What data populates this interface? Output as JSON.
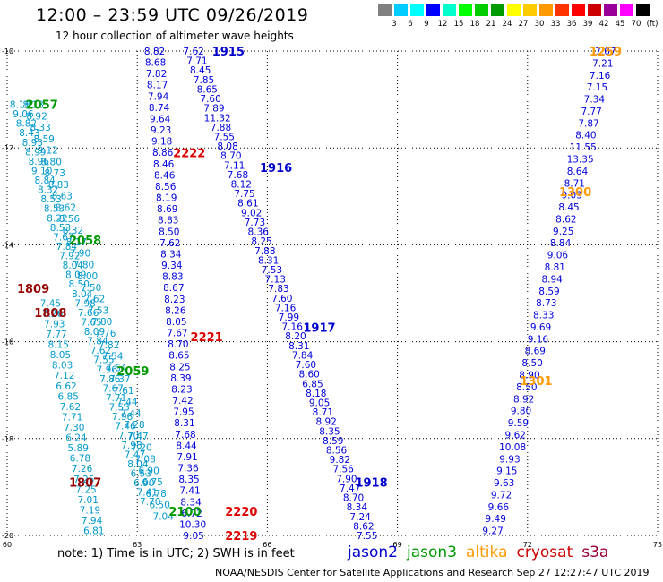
{
  "title": "12:00 – 23:59 UTC 09/26/2019",
  "subtitle": "12 hour collection of altimeter wave heights",
  "note": "note: 1) Time is in UTC; 2) SWH is in feet",
  "credit": "NOAA/NESDIS Center for Satellite Applications and Research   Sep 27 12:27:47 UTC 2019",
  "satellites": [
    {
      "name": "jason2",
      "color": "#0000cc"
    },
    {
      "name": "jason3",
      "color": "#009900"
    },
    {
      "name": "altika",
      "color": "#ff9900"
    },
    {
      "name": "cryosat",
      "color": "#cc0000"
    },
    {
      "name": "s3a",
      "color": "#990033"
    }
  ],
  "legend": {
    "labels": [
      "3",
      "6",
      "9",
      "12",
      "15",
      "18",
      "21",
      "24",
      "27",
      "30",
      "33",
      "36",
      "39",
      "42",
      "45",
      "70"
    ],
    "unit": "(ft)",
    "colors": [
      "#808080",
      "#00ccff",
      "#00ffff",
      "#0000ff",
      "#00ffcc",
      "#00ff00",
      "#00cc00",
      "#009900",
      "#ffff00",
      "#ffcc00",
      "#ff9900",
      "#ff3300",
      "#ff0000",
      "#cc0000",
      "#990099",
      "#ff00ff",
      "#000000"
    ]
  },
  "map": {
    "lon_range": [
      60,
      75
    ],
    "lat_range": [
      -20,
      -10
    ],
    "lon_ticks": [
      "60",
      "63",
      "66",
      "69",
      "72",
      "75"
    ],
    "lat_ticks": [
      "-10",
      "-12",
      "-14",
      "-16",
      "-18",
      "-20"
    ],
    "grid": true
  },
  "track_labels": [
    {
      "text": "1915",
      "lon": 65.1,
      "lat": -10.0,
      "color": "#0000cc"
    },
    {
      "text": "1916",
      "lon": 66.2,
      "lat": -12.4,
      "color": "#0000cc"
    },
    {
      "text": "1917",
      "lon": 67.2,
      "lat": -15.7,
      "color": "#0000cc"
    },
    {
      "text": "1918",
      "lon": 68.4,
      "lat": -18.9,
      "color": "#0000cc"
    },
    {
      "text": "2222",
      "lon": 64.2,
      "lat": -12.1,
      "color": "#dd0000"
    },
    {
      "text": "2221",
      "lon": 64.6,
      "lat": -15.9,
      "color": "#dd0000"
    },
    {
      "text": "2220",
      "lon": 65.4,
      "lat": -19.5,
      "color": "#dd0000"
    },
    {
      "text": "2219",
      "lon": 65.4,
      "lat": -20.0,
      "color": "#dd0000"
    },
    {
      "text": "2057",
      "lon": 60.8,
      "lat": -11.1,
      "color": "#009900"
    },
    {
      "text": "2058",
      "lon": 61.8,
      "lat": -13.9,
      "color": "#009900"
    },
    {
      "text": "2059",
      "lon": 62.9,
      "lat": -16.6,
      "color": "#009900"
    },
    {
      "text": "2100",
      "lon": 64.1,
      "lat": -19.5,
      "color": "#009900"
    },
    {
      "text": "1809",
      "lon": 60.6,
      "lat": -14.9,
      "color": "#990000"
    },
    {
      "text": "1808",
      "lon": 61.0,
      "lat": -15.4,
      "color": "#990000"
    },
    {
      "text": "1807",
      "lon": 61.8,
      "lat": -18.9,
      "color": "#990000"
    },
    {
      "text": "1259",
      "lon": 73.8,
      "lat": -10.0,
      "color": "#ff9900"
    },
    {
      "text": "1300",
      "lon": 73.1,
      "lat": -12.9,
      "color": "#ff9900"
    },
    {
      "text": "1301",
      "lon": 72.2,
      "lat": -16.8,
      "color": "#ff9900"
    }
  ],
  "tracks": [
    {
      "name": "track-1915-1918",
      "color": "#0000dd",
      "lon_start": 64.3,
      "lat_start": -10.0,
      "lon_end": 68.3,
      "lat_end": -20.0,
      "values": [
        "7.62",
        "7.71",
        "8.45",
        "7.85",
        "8.65",
        "7.60",
        "7.89",
        "11.32",
        "7.88",
        "7.55",
        "8.08",
        "8.70",
        "7.11",
        "7.68",
        "8.12",
        "7.75",
        "8.61",
        "9.02",
        "7.73",
        "8.36",
        "8.25",
        "7.88",
        "8.31",
        "7.53",
        "7.13",
        "7.83",
        "7.60",
        "7.16",
        "7.99",
        "7.16",
        "8.20",
        "8.31",
        "7.84",
        "7.60",
        "8.60",
        "6.85",
        "8.18",
        "9.05",
        "8.71",
        "8.92",
        "8.35",
        "8.59",
        "8.56",
        "9.82",
        "7.56",
        "7.90",
        "7.47",
        "8.70",
        "8.34",
        "7.24",
        "8.62",
        "7.55"
      ]
    },
    {
      "name": "track-2219-2222",
      "color": "#0000dd",
      "lon_start": 63.4,
      "lat_start": -10.0,
      "lon_end": 64.3,
      "lat_end": -20.0,
      "values": [
        "8.82",
        "8.68",
        "7.82",
        "8.17",
        "7.94",
        "8.74",
        "9.64",
        "9.23",
        "9.18",
        "8.86",
        "8.46",
        "8.46",
        "8.56",
        "8.19",
        "8.69",
        "8.83",
        "8.50",
        "7.62",
        "8.34",
        "9.34",
        "8.83",
        "8.67",
        "8.23",
        "8.26",
        "8.05",
        "7.67",
        "8.70",
        "8.65",
        "8.25",
        "8.39",
        "8.23",
        "7.42",
        "7.95",
        "8.31",
        "7.68",
        "8.44",
        "7.91",
        "7.36",
        "8.35",
        "7.41",
        "8.34",
        "6.72",
        "10.30",
        "9.05"
      ]
    },
    {
      "name": "track-1259-1301",
      "color": "#0000dd",
      "lon_start": 73.8,
      "lat_start": -10.0,
      "lon_end": 71.2,
      "lat_end": -19.9,
      "values": [
        "7.07",
        "7.21",
        "7.16",
        "7.15",
        "7.34",
        "7.77",
        "7.87",
        "8.40",
        "11.55",
        "13.35",
        "8.64",
        "8.71",
        "9.03",
        "8.45",
        "8.62",
        "9.25",
        "8.84",
        "9.06",
        "8.81",
        "8.94",
        "8.59",
        "8.73",
        "8.33",
        "9.69",
        "9.16",
        "8.69",
        "8.50",
        "8.90",
        "8.50",
        "8.92",
        "9.80",
        "9.59",
        "9.62",
        "10.08",
        "9.93",
        "9.15",
        "9.63",
        "9.72",
        "9.66",
        "9.49",
        "9.27"
      ]
    },
    {
      "name": "track-1807-1809",
      "color": "#0099cc",
      "lon_start": 61.0,
      "lat_start": -15.2,
      "lon_end": 62.0,
      "lat_end": -19.9,
      "values": [
        "7.45",
        "7.26",
        "7.93",
        "7.77",
        "8.15",
        "8.05",
        "8.03",
        "7.12",
        "6.62",
        "6.85",
        "7.62",
        "7.71",
        "7.30",
        "6.24",
        "5.89",
        "6.78",
        "7.26",
        "7.25",
        "7.25",
        "7.01",
        "7.19",
        "7.94",
        "6.81"
      ]
    },
    {
      "name": "track-2057-2100-a",
      "color": "#0099cc",
      "lon_start": 60.3,
      "lat_start": -11.1,
      "lon_end": 63.3,
      "lat_end": -19.3,
      "values": [
        "8.18",
        "9.06",
        "8.82",
        "8.43",
        "8.93",
        "8.99",
        "8.96",
        "9.10",
        "8.84",
        "8.32",
        "8.53",
        "8.53",
        "8.22",
        "8.53",
        "7.67",
        "7.84",
        "7.92",
        "8.04",
        "8.09",
        "8.50",
        "8.04",
        "7.98",
        "7.66",
        "7.65",
        "8.09",
        "7.84",
        "7.62",
        "7.55",
        "7.96",
        "7.86",
        "7.67",
        "7.71",
        "7.53",
        "7.98",
        "7.46",
        "7.70",
        "7.98",
        "7.47",
        "8.04",
        "6.53",
        "6.90",
        "7.41",
        "7.70"
      ]
    },
    {
      "name": "track-2057-2100-b",
      "color": "#0099cc",
      "lon_start": 60.6,
      "lat_start": -11.1,
      "lon_end": 63.6,
      "lat_end": -19.6,
      "values": [
        "8.18",
        "8.92",
        "8.33",
        "8.59",
        "9.12",
        "8.80",
        "8.73",
        "8.83",
        "8.63",
        "8.62",
        "8.56",
        "8.32",
        "8.17",
        "7.90",
        "7.80",
        "8.00",
        "7.50",
        "7.62",
        "7.53",
        "7.80",
        "7.76",
        "7.82",
        "7.54",
        "7.64",
        "7.37",
        "7.61",
        "7.44",
        "7.44",
        "7.28",
        "7.47",
        "7.20",
        "7.08",
        "6.90",
        "6.75",
        "6.78",
        "6.50",
        "7.04"
      ]
    }
  ]
}
